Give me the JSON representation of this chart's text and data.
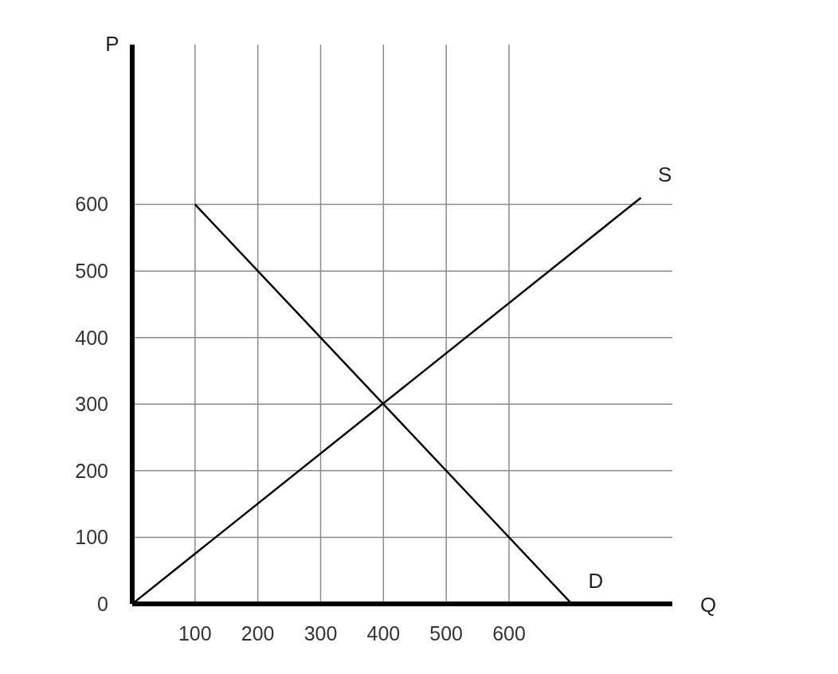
{
  "chart_data": {
    "type": "line",
    "xlabel": "Q",
    "ylabel": "P",
    "xlim": [
      0,
      860
    ],
    "ylim": [
      0,
      840
    ],
    "xticks": [
      100,
      200,
      300,
      400,
      500,
      600
    ],
    "yticks": [
      0,
      100,
      200,
      300,
      400,
      500,
      600
    ],
    "grid": true,
    "legend": false,
    "marker": "none",
    "line_style": "solid",
    "series": [
      {
        "name": "D",
        "color": "#000000",
        "x": [
          100,
          700
        ],
        "values": [
          600,
          0
        ]
      },
      {
        "name": "S",
        "color": "#000000",
        "x": [
          0,
          810
        ],
        "values": [
          0,
          610
        ]
      }
    ]
  }
}
